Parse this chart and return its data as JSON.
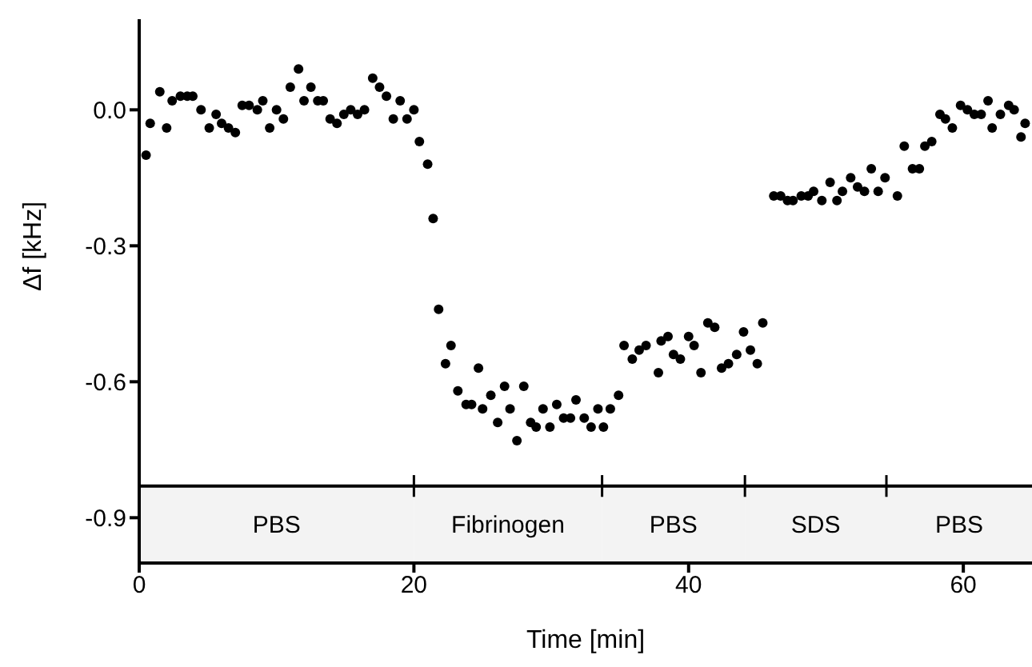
{
  "chart_data": {
    "type": "scatter",
    "xlabel": "Time [min]",
    "ylabel": "Δf [kHz]",
    "x": [
      0.5,
      0.8,
      1.5,
      2.0,
      2.4,
      3.0,
      3.5,
      3.9,
      4.5,
      5.1,
      5.6,
      6.0,
      6.5,
      7.0,
      7.5,
      8.0,
      8.6,
      9.0,
      9.5,
      10.0,
      10.5,
      11.0,
      11.6,
      12.0,
      12.5,
      13.0,
      13.4,
      13.9,
      14.4,
      14.9,
      15.4,
      15.9,
      16.4,
      17.0,
      17.5,
      18.0,
      18.5,
      19.0,
      19.5,
      20.0,
      20.4,
      21.0,
      21.4,
      21.8,
      22.3,
      22.7,
      23.2,
      23.8,
      24.2,
      24.7,
      25.0,
      25.6,
      26.1,
      26.6,
      27.0,
      27.5,
      28.0,
      28.5,
      28.9,
      29.4,
      29.9,
      30.4,
      30.9,
      31.4,
      31.8,
      32.4,
      32.9,
      33.4,
      33.8,
      34.3,
      34.9,
      35.3,
      35.9,
      36.4,
      36.9,
      37.8,
      38.0,
      38.5,
      38.9,
      39.4,
      40.0,
      40.4,
      40.9,
      41.4,
      41.9,
      42.4,
      42.9,
      43.5,
      44.0,
      44.5,
      45.0,
      45.4,
      46.2,
      46.7,
      47.2,
      47.6,
      48.2,
      48.7,
      49.1,
      49.7,
      50.3,
      50.8,
      51.2,
      51.8,
      52.3,
      52.8,
      53.3,
      53.8,
      54.3,
      55.2,
      55.7,
      56.3,
      56.8,
      57.2,
      57.7,
      58.3,
      58.7,
      59.2,
      59.8,
      60.3,
      60.8,
      61.3,
      61.8,
      62.1,
      62.7,
      63.3,
      63.7,
      64.2,
      64.5
    ],
    "values": [
      -0.1,
      -0.03,
      0.04,
      -0.04,
      0.02,
      0.03,
      0.03,
      0.03,
      0.0,
      -0.04,
      -0.01,
      -0.03,
      -0.04,
      -0.05,
      0.01,
      0.01,
      0.0,
      0.02,
      -0.04,
      0.0,
      -0.02,
      0.05,
      0.09,
      0.02,
      0.05,
      0.02,
      0.02,
      -0.02,
      -0.03,
      -0.01,
      0.0,
      -0.01,
      0.0,
      0.07,
      0.05,
      0.03,
      -0.02,
      0.02,
      -0.02,
      0.0,
      -0.07,
      -0.12,
      -0.24,
      -0.44,
      -0.56,
      -0.52,
      -0.62,
      -0.65,
      -0.65,
      -0.57,
      -0.66,
      -0.63,
      -0.69,
      -0.61,
      -0.66,
      -0.73,
      -0.61,
      -0.69,
      -0.7,
      -0.66,
      -0.7,
      -0.65,
      -0.68,
      -0.68,
      -0.64,
      -0.68,
      -0.7,
      -0.66,
      -0.7,
      -0.66,
      -0.63,
      -0.52,
      -0.55,
      -0.53,
      -0.52,
      -0.58,
      -0.51,
      -0.5,
      -0.54,
      -0.55,
      -0.5,
      -0.52,
      -0.58,
      -0.47,
      -0.48,
      -0.57,
      -0.56,
      -0.54,
      -0.49,
      -0.53,
      -0.56,
      -0.47,
      -0.19,
      -0.19,
      -0.2,
      -0.2,
      -0.19,
      -0.19,
      -0.18,
      -0.2,
      -0.16,
      -0.2,
      -0.18,
      -0.15,
      -0.17,
      -0.18,
      -0.13,
      -0.18,
      -0.15,
      -0.19,
      -0.08,
      -0.13,
      -0.13,
      -0.08,
      -0.07,
      -0.01,
      -0.02,
      -0.04,
      0.01,
      0.0,
      -0.01,
      -0.01,
      0.02,
      -0.04,
      -0.01,
      0.01,
      0.0,
      -0.06,
      -0.03
    ],
    "color": "#000000",
    "marker": "circle",
    "xlim": [
      0,
      65
    ],
    "xticks": [
      0,
      20,
      40,
      60
    ],
    "ylim": [
      -1.0,
      0.2
    ],
    "yticks": [
      {
        "value": -0.9,
        "label": "-0.9"
      },
      {
        "value": -0.6,
        "label": "-0.6"
      },
      {
        "value": -0.3,
        "label": "-0.3"
      },
      {
        "value": 0,
        "label": "0.0"
      }
    ],
    "ref_lines": [
      {
        "axis": "y",
        "value": -0.83,
        "color": "#000000"
      }
    ],
    "bands": [
      {
        "axis": "x",
        "from": 0,
        "to": 20,
        "label": "PBS",
        "color": "#f3f3f3"
      },
      {
        "axis": "x",
        "from": 20,
        "to": 33.7,
        "label": "Fibrinogen",
        "color": "#f3f3f3"
      },
      {
        "axis": "x",
        "from": 33.7,
        "to": 44.1,
        "label": "PBS",
        "color": "#f3f3f3"
      },
      {
        "axis": "x",
        "from": 44.1,
        "to": 54.4,
        "label": "SDS",
        "color": "#f3f3f3"
      },
      {
        "axis": "x",
        "from": 54.4,
        "to": 65,
        "label": "PBS",
        "color": "#f3f3f3"
      }
    ],
    "grid": false,
    "legend": false
  }
}
